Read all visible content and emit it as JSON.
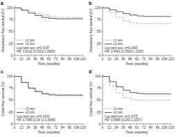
{
  "chart_data": [
    {
      "type": "step",
      "title": "a",
      "xlabel": "Time (months)",
      "ylabel": "Recurrence free survival (%)",
      "annotation": "Log-rank test, p=0.3347\nHR: 0.8x10 (0.2022-1.5605)",
      "x": [
        0,
        12,
        24,
        36,
        48,
        60,
        72,
        84,
        96,
        108,
        120
      ],
      "series": [
        {
          "name": "≤2 mm",
          "color": "#aaaaaa",
          "line_style": "dashed",
          "values": [
            100,
            96,
            92,
            88,
            85,
            82,
            80,
            80,
            80,
            80,
            80
          ]
        },
        {
          "name": ">2 mm",
          "color": "#444444",
          "line_style": "solid",
          "values": [
            100,
            95,
            89,
            84,
            80,
            78,
            77,
            77,
            77,
            77,
            77
          ]
        }
      ],
      "xlim": [
        0,
        120
      ],
      "ylim": [
        0,
        105
      ],
      "xticks": [
        0,
        12,
        24,
        36,
        48,
        60,
        72,
        84,
        96,
        108,
        120
      ],
      "yticks": [
        0,
        25,
        50,
        75,
        100
      ],
      "grid": false,
      "legend": "lower-left"
    },
    {
      "type": "step",
      "title": "b",
      "xlabel": "Time (months)",
      "ylabel": "Recurrence free survival (%)",
      "annotation": "Log-rank test, p=0.1490\nHR: 0.4453 (0.1506-1.3155)",
      "x": [
        0,
        12,
        24,
        36,
        48,
        60,
        72,
        84,
        96,
        108,
        120
      ],
      "series": [
        {
          "name": "<1 mm",
          "color": "#aaaaaa",
          "line_style": "dashed",
          "values": [
            100,
            90,
            80,
            73,
            69,
            67,
            67,
            67,
            67,
            67,
            67
          ]
        },
        {
          "name": "≥1 mm",
          "color": "#444444",
          "line_style": "solid",
          "values": [
            100,
            96,
            92,
            88,
            85,
            83,
            82,
            82,
            82,
            82,
            82
          ]
        }
      ],
      "xlim": [
        0,
        120
      ],
      "ylim": [
        0,
        105
      ],
      "xticks": [
        0,
        12,
        24,
        36,
        48,
        60,
        72,
        84,
        96,
        108,
        120
      ],
      "yticks": [
        0,
        25,
        50,
        75,
        100
      ],
      "grid": false,
      "legend": "lower-left"
    },
    {
      "type": "step",
      "title": "c",
      "xlabel": "Time (months)",
      "ylabel": "Event-free survival (%)",
      "annotation": "Log-rank test, p=0.4143\nHR: 0.7085 (0.34 (3-1.5689)",
      "x": [
        0,
        12,
        24,
        36,
        48,
        60,
        72,
        84,
        96,
        108,
        120
      ],
      "series": [
        {
          "name": "<2 mm",
          "color": "#aaaaaa",
          "line_style": "dashed",
          "values": [
            100,
            88,
            77,
            70,
            65,
            63,
            62,
            62,
            62,
            62,
            62
          ]
        },
        {
          "name": "≥2 mm",
          "color": "#444444",
          "line_style": "solid",
          "values": [
            100,
            87,
            75,
            68,
            63,
            61,
            60,
            60,
            60,
            60,
            60
          ]
        }
      ],
      "xlim": [
        0,
        120
      ],
      "ylim": [
        0,
        105
      ],
      "xticks": [
        0,
        12,
        24,
        36,
        48,
        60,
        72,
        84,
        96,
        108,
        120
      ],
      "yticks": [
        0,
        25,
        50,
        75,
        100
      ],
      "grid": false,
      "legend": "lower-left"
    },
    {
      "type": "step",
      "title": "d",
      "xlabel": "Time (months)",
      "ylabel": "Event-free survival (%)",
      "annotation": "Log-rank test, p=0.1575\nHR: 0.5858 (0.293-1.1537)",
      "x": [
        0,
        12,
        24,
        36,
        48,
        60,
        72,
        84,
        96,
        108,
        120
      ],
      "series": [
        {
          "name": "<1 mm",
          "color": "#aaaaaa",
          "line_style": "dashed",
          "values": [
            100,
            80,
            65,
            55,
            51,
            50,
            50,
            50,
            50,
            50,
            50
          ]
        },
        {
          "name": "≥1 mm",
          "color": "#444444",
          "line_style": "solid",
          "values": [
            100,
            89,
            78,
            71,
            66,
            64,
            63,
            63,
            63,
            63,
            63
          ]
        }
      ],
      "xlim": [
        0,
        120
      ],
      "ylim": [
        0,
        105
      ],
      "xticks": [
        0,
        12,
        24,
        36,
        48,
        60,
        72,
        84,
        96,
        108,
        120
      ],
      "yticks": [
        0,
        25,
        50,
        75,
        100
      ],
      "grid": false,
      "legend": "lower-left"
    }
  ]
}
